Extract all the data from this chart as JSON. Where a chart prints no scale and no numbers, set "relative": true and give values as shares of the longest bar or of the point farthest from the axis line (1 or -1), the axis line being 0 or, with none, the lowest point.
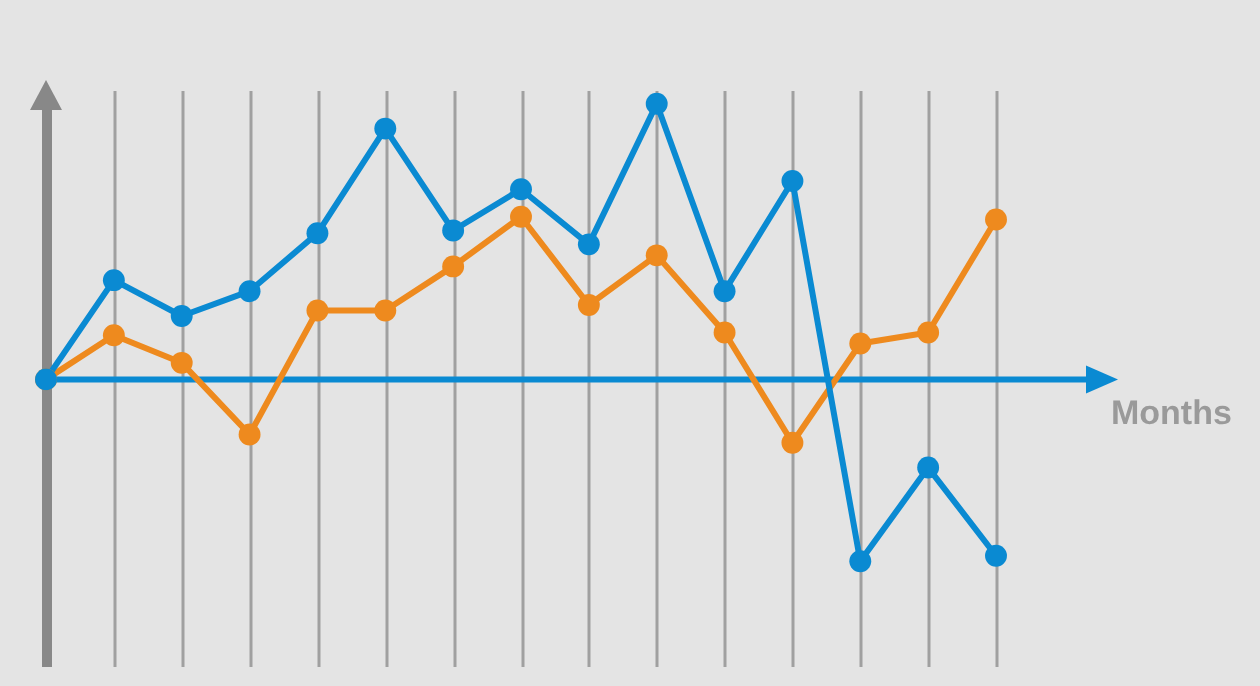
{
  "chart_data": {
    "type": "line",
    "relative": true,
    "xlabel": "Months",
    "categories": [
      null,
      null,
      null,
      null,
      null,
      null,
      null,
      null,
      null,
      null,
      null,
      null,
      null,
      null,
      null
    ],
    "series": [
      {
        "color": "#ee8a1e",
        "values": [
          0,
          0.16,
          0.06,
          -0.2,
          0.25,
          0.25,
          0.41,
          0.59,
          0.27,
          0.45,
          0.17,
          -0.23,
          0.13,
          0.17,
          0.58
        ]
      },
      {
        "color": "#0a8ad2",
        "values": [
          0,
          0.36,
          0.23,
          0.32,
          0.53,
          0.91,
          0.54,
          0.69,
          0.49,
          1,
          0.32,
          0.72,
          -0.66,
          -0.32,
          -0.64
        ]
      }
    ],
    "ref_lines": [
      {
        "axis": "y",
        "value": 0,
        "color": "#0a8ad2"
      }
    ],
    "grid": "x",
    "marker": "circle",
    "line_style": "solid"
  }
}
